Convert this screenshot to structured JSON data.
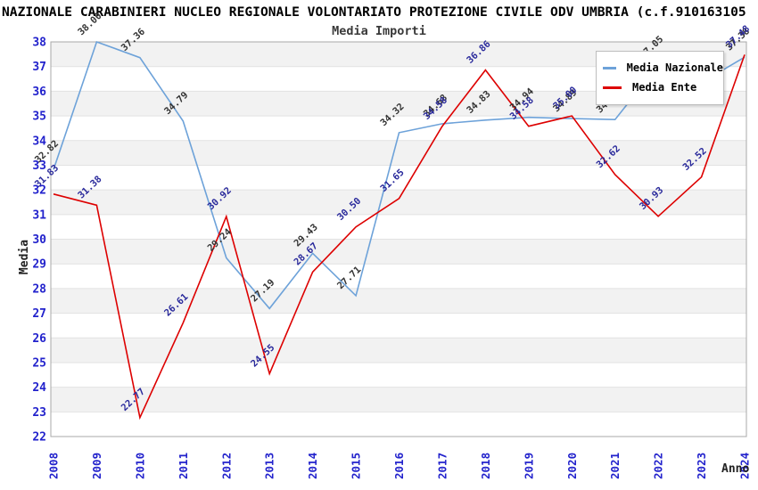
{
  "header": {
    "title": "NAZIONALE CARABINIERI NUCLEO REGIONALE VOLONTARIATO PROTEZIONE CIVILE ODV UMBRIA (c.f.910163105",
    "subtitle": "Media Importi"
  },
  "axes": {
    "y_title": "Media",
    "x_title": "Anno"
  },
  "legend": {
    "items": [
      {
        "label": "Media Nazionale",
        "color": "#6da2d9"
      },
      {
        "label": "Media Ente",
        "color": "#dd0000"
      }
    ]
  },
  "chart_data": {
    "type": "line",
    "x": [
      2008,
      2009,
      2010,
      2011,
      2012,
      2013,
      2014,
      2015,
      2016,
      2017,
      2018,
      2019,
      2020,
      2021,
      2022,
      2023,
      2024
    ],
    "series": [
      {
        "name": "Media Nazionale",
        "color": "#6da2d9",
        "label_color": "#333333",
        "values": [
          32.82,
          38.0,
          37.36,
          34.79,
          29.24,
          27.19,
          29.43,
          27.71,
          34.32,
          34.68,
          34.83,
          34.94,
          34.89,
          34.85,
          37.05,
          36.35,
          37.38
        ]
      },
      {
        "name": "Media Ente",
        "color": "#dd0000",
        "label_color": "#29299b",
        "values": [
          31.83,
          31.38,
          22.77,
          26.61,
          30.92,
          24.55,
          28.67,
          30.5,
          31.65,
          34.58,
          36.86,
          34.58,
          35.0,
          32.62,
          30.93,
          32.52,
          37.48
        ]
      }
    ],
    "title": "Media Importi",
    "xlabel": "Anno",
    "ylabel": "Media",
    "ylim": [
      22,
      38
    ],
    "y_tick_step": 1,
    "grid": "horizontal-bands",
    "band_color": "#f2f2f2",
    "gridline_color": "#e2e2e2",
    "frame_color": "#a8a8a8",
    "tick_label_color": "#2222cc",
    "legend_position": "top-right"
  }
}
